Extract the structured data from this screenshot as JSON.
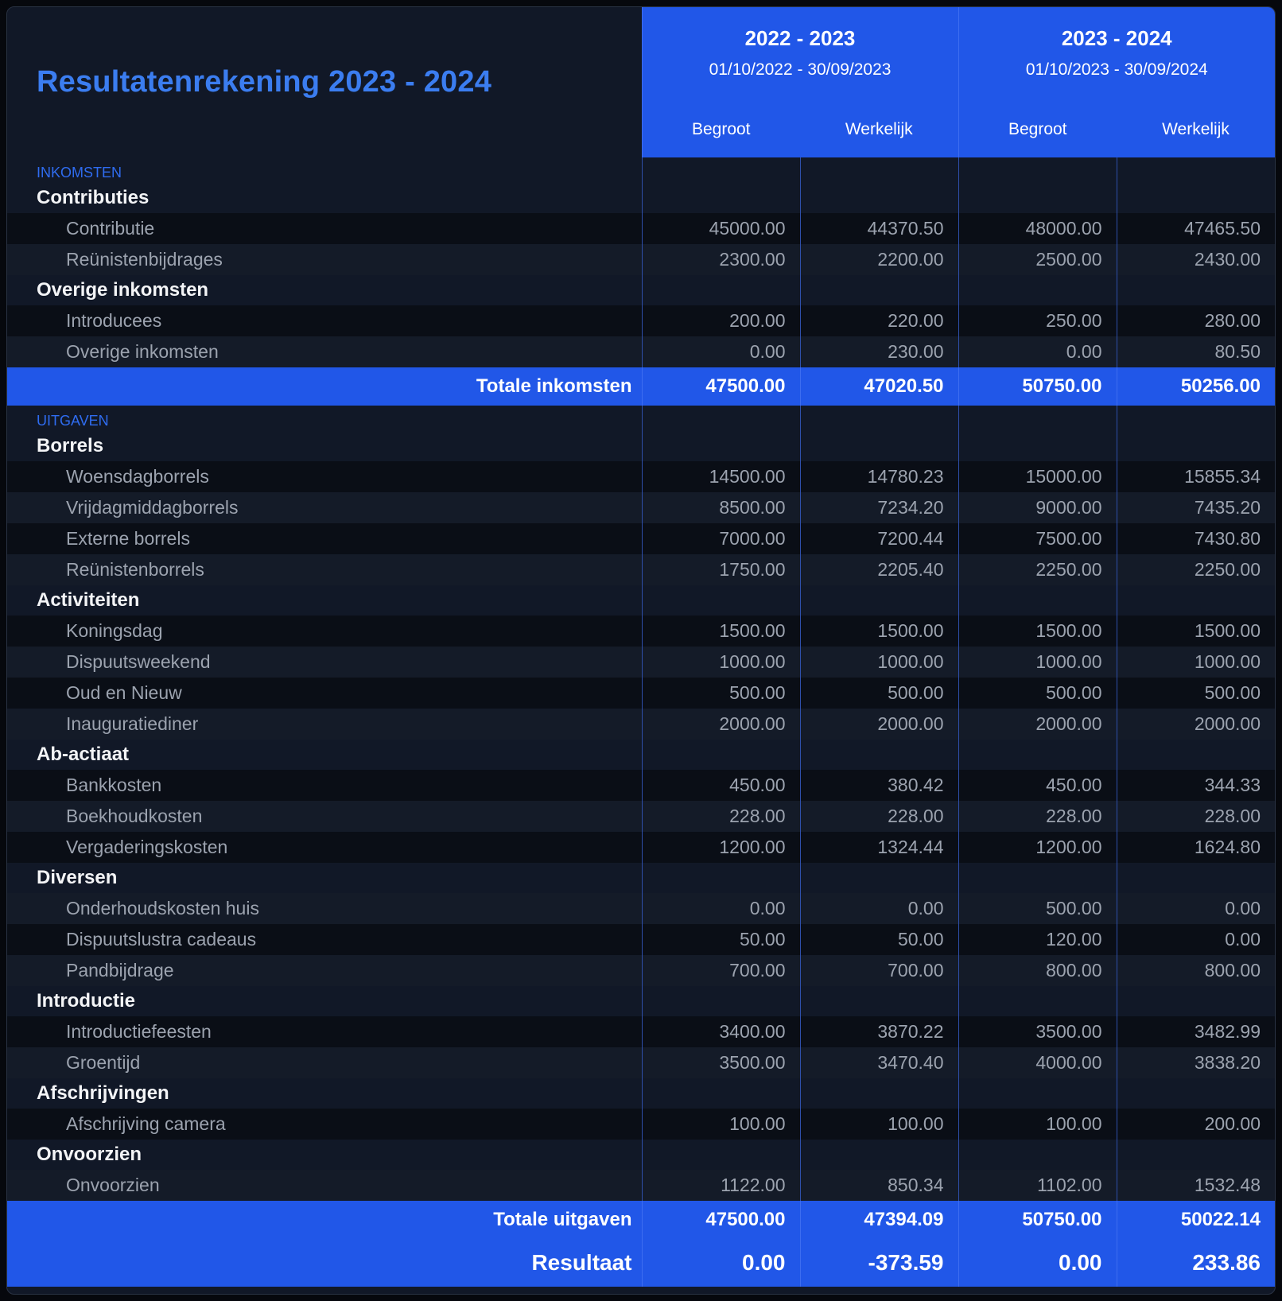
{
  "title": "Resultatenrekening 2023 - 2024",
  "periods": [
    {
      "name": "2022 - 2023",
      "dates": "01/10/2022 - 30/09/2023",
      "cols": [
        "Begroot",
        "Werkelijk"
      ]
    },
    {
      "name": "2023 - 2024",
      "dates": "01/10/2023 - 30/09/2024",
      "cols": [
        "Begroot",
        "Werkelijk"
      ]
    }
  ],
  "income": {
    "label": "INKOMSTEN",
    "groups": [
      {
        "name": "Contributies",
        "items": [
          {
            "name": "Contributie",
            "values": [
              "45000.00",
              "44370.50",
              "48000.00",
              "47465.50"
            ]
          },
          {
            "name": "Reünistenbijdrages",
            "values": [
              "2300.00",
              "2200.00",
              "2500.00",
              "2430.00"
            ]
          }
        ]
      },
      {
        "name": "Overige inkomsten",
        "items": [
          {
            "name": "Introducees",
            "values": [
              "200.00",
              "220.00",
              "250.00",
              "280.00"
            ]
          },
          {
            "name": "Overige inkomsten",
            "values": [
              "0.00",
              "230.00",
              "0.00",
              "80.50"
            ]
          }
        ]
      }
    ],
    "total": {
      "label": "Totale inkomsten",
      "values": [
        "47500.00",
        "47020.50",
        "50750.00",
        "50256.00"
      ]
    }
  },
  "expenses": {
    "label": "UITGAVEN",
    "groups": [
      {
        "name": "Borrels",
        "items": [
          {
            "name": "Woensdagborrels",
            "values": [
              "14500.00",
              "14780.23",
              "15000.00",
              "15855.34"
            ]
          },
          {
            "name": "Vrijdagmiddagborrels",
            "values": [
              "8500.00",
              "7234.20",
              "9000.00",
              "7435.20"
            ]
          },
          {
            "name": "Externe borrels",
            "values": [
              "7000.00",
              "7200.44",
              "7500.00",
              "7430.80"
            ]
          },
          {
            "name": "Reünistenborrels",
            "values": [
              "1750.00",
              "2205.40",
              "2250.00",
              "2250.00"
            ]
          }
        ]
      },
      {
        "name": "Activiteiten",
        "items": [
          {
            "name": "Koningsdag",
            "values": [
              "1500.00",
              "1500.00",
              "1500.00",
              "1500.00"
            ]
          },
          {
            "name": "Dispuutsweekend",
            "values": [
              "1000.00",
              "1000.00",
              "1000.00",
              "1000.00"
            ]
          },
          {
            "name": "Oud en Nieuw",
            "values": [
              "500.00",
              "500.00",
              "500.00",
              "500.00"
            ]
          },
          {
            "name": "Inauguratiediner",
            "values": [
              "2000.00",
              "2000.00",
              "2000.00",
              "2000.00"
            ]
          }
        ]
      },
      {
        "name": "Ab-actiaat",
        "items": [
          {
            "name": "Bankkosten",
            "values": [
              "450.00",
              "380.42",
              "450.00",
              "344.33"
            ]
          },
          {
            "name": "Boekhoudkosten",
            "values": [
              "228.00",
              "228.00",
              "228.00",
              "228.00"
            ]
          },
          {
            "name": "Vergaderingskosten",
            "values": [
              "1200.00",
              "1324.44",
              "1200.00",
              "1624.80"
            ]
          }
        ]
      },
      {
        "name": "Diversen",
        "items": [
          {
            "name": "Onderhoudskosten huis",
            "values": [
              "0.00",
              "0.00",
              "500.00",
              "0.00"
            ]
          },
          {
            "name": "Dispuutslustra cadeaus",
            "values": [
              "50.00",
              "50.00",
              "120.00",
              "0.00"
            ]
          },
          {
            "name": "Pandbijdrage",
            "values": [
              "700.00",
              "700.00",
              "800.00",
              "800.00"
            ]
          }
        ]
      },
      {
        "name": "Introductie",
        "items": [
          {
            "name": "Introductiefeesten",
            "values": [
              "3400.00",
              "3870.22",
              "3500.00",
              "3482.99"
            ]
          },
          {
            "name": "Groentijd",
            "values": [
              "3500.00",
              "3470.40",
              "4000.00",
              "3838.20"
            ]
          }
        ]
      },
      {
        "name": "Afschrijvingen",
        "items": [
          {
            "name": "Afschrijving camera",
            "values": [
              "100.00",
              "100.00",
              "100.00",
              "200.00"
            ]
          }
        ]
      },
      {
        "name": "Onvoorzien",
        "items": [
          {
            "name": "Onvoorzien",
            "values": [
              "1122.00",
              "850.34",
              "1102.00",
              "1532.48"
            ]
          }
        ]
      }
    ],
    "total": {
      "label": "Totale uitgaven",
      "values": [
        "47500.00",
        "47394.09",
        "50750.00",
        "50022.14"
      ]
    }
  },
  "result": {
    "label": "Resultaat",
    "values": [
      "0.00",
      "-373.59",
      "0.00",
      "233.86"
    ]
  }
}
